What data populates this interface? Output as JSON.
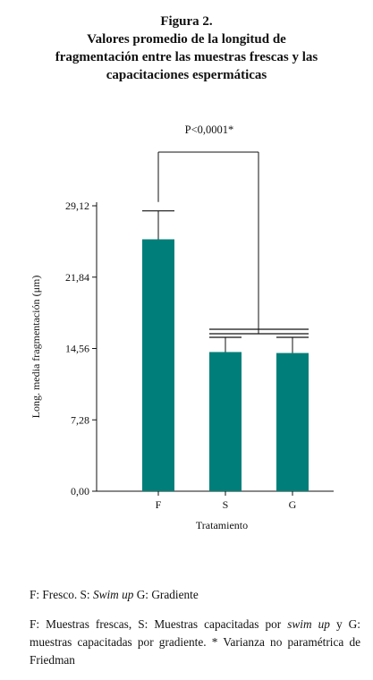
{
  "figure": {
    "title_lines": [
      "Figura 2.",
      "Valores promedio de la longitud de",
      "fragmentación entre las muestras frescas y las",
      "capacitaciones espermáticas"
    ]
  },
  "chart_data": {
    "type": "bar",
    "categories": [
      "F",
      "S",
      "G"
    ],
    "values": [
      25.7,
      14.2,
      14.1
    ],
    "error_upper": [
      28.6,
      15.7,
      15.7
    ],
    "bar_color": "#007f7a",
    "xlabel": "Tratamiento",
    "ylabel": "Long. media fragmentación (μm)",
    "ylim": [
      0,
      29.12
    ],
    "yticks": [
      "0,00",
      "7,28",
      "14,56",
      "21,84",
      "29,12"
    ],
    "significance": "P<0,0001*",
    "grid": false
  },
  "footnotes": {
    "line1_prefix": "F: Fresco. S: ",
    "line1_italic": "Swim up",
    "line1_suffix": " G: Gradiente",
    "line2_prefix": "F: Muestras frescas, S: Muestras capacitadas por ",
    "line2_italic": "swim up",
    "line2_suffix": " y G: muestras capacitadas por gradiente. * Varianza no paramétrica de Friedman"
  }
}
